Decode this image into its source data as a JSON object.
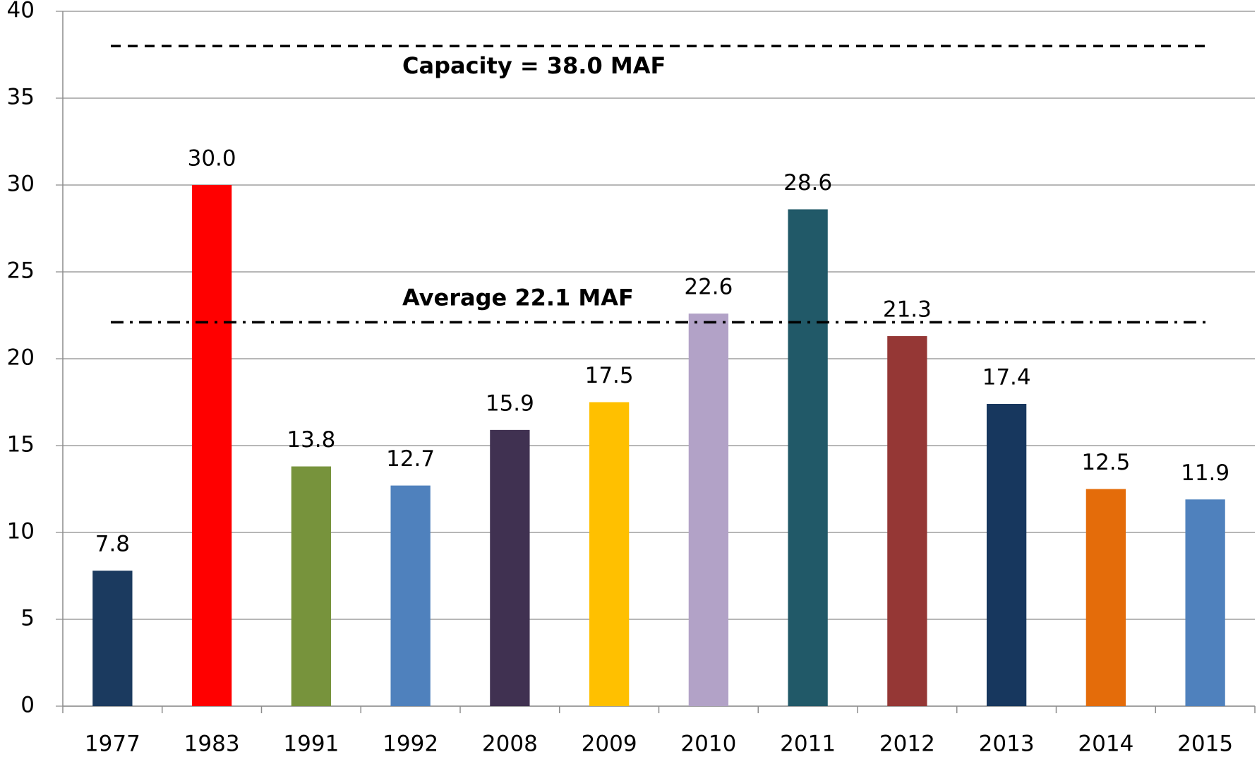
{
  "chart_data": {
    "type": "bar",
    "categories": [
      "1977",
      "1983",
      "1991",
      "1992",
      "2008",
      "2009",
      "2010",
      "2011",
      "2012",
      "2013",
      "2014",
      "2015"
    ],
    "values": [
      7.8,
      30,
      13.8,
      12.7,
      15.9,
      17.5,
      22.6,
      28.6,
      21.3,
      17.4,
      12.5,
      11.9
    ],
    "value_labels": [
      "7.8",
      "30.0",
      "13.8",
      "12.7",
      "15.9",
      "17.5",
      "22.6",
      "28.6",
      "21.3",
      "17.4",
      "12.5",
      "11.9"
    ],
    "colors": [
      "#1b3a5f",
      "#ff0000",
      "#77933c",
      "#4f81bd",
      "#403151",
      "#ffc000",
      "#b2a2c7",
      "#215968",
      "#953735",
      "#17375e",
      "#e46c0a",
      "#4f81bd"
    ],
    "ylim": [
      0,
      40
    ],
    "yticks": [
      0,
      5,
      10,
      15,
      20,
      25,
      30,
      35,
      40
    ],
    "grid": true,
    "reference_lines": [
      {
        "value": 38,
        "label": "Capacity = 38.0 MAF",
        "style": "dashed"
      },
      {
        "value": 22.1,
        "label": "Average 22.1 MAF",
        "style": "dashdot"
      }
    ]
  }
}
